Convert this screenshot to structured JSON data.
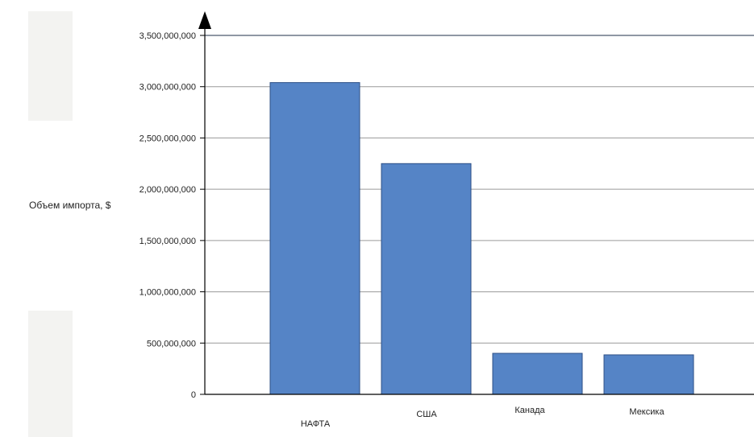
{
  "colors": {
    "bar_fill": "#5584c6",
    "bar_stroke": "#2d4f86",
    "axis": "#000000",
    "grid": "#9a9a9a",
    "panel_gray": "#f3f3f1",
    "panel_white": "#ffffff"
  },
  "chart_data": {
    "type": "bar",
    "title": "",
    "xlabel": "",
    "ylabel": "Объем импорта, $",
    "categories": [
      "НАФТА",
      "США",
      "Канада",
      "Мексика"
    ],
    "values": [
      3040000000,
      2250000000,
      400000000,
      385000000
    ],
    "ylim": [
      0,
      3500000000
    ],
    "yticks": [
      0,
      500000000,
      1000000000,
      1500000000,
      2000000000,
      2500000000,
      3000000000,
      3500000000
    ],
    "ytick_labels": [
      "0",
      "500,000,000",
      "1,000,000,000",
      "1,500,000,000",
      "2,000,000,000",
      "2,500,000,000",
      "3,000,000,000",
      "3,500,000,000"
    ],
    "grid": true,
    "legend": "none"
  }
}
